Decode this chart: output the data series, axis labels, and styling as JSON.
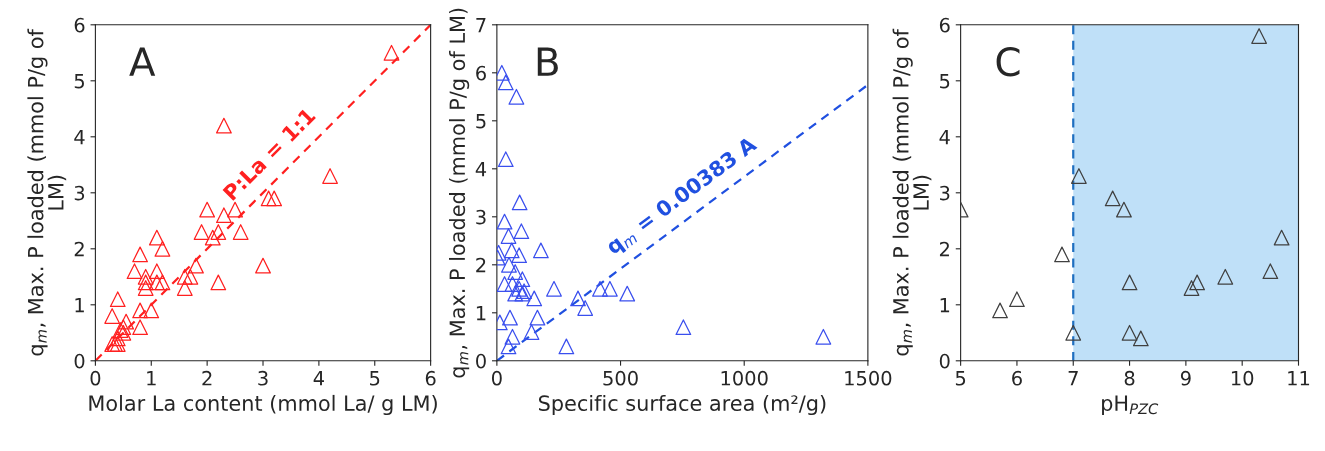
{
  "chart_data": [
    {
      "type": "scatter",
      "xlabel": "Molar La content (mmol La/ g LM)",
      "ylabel": "q$_{m}$, Max. P loaded (mmol P/g of\nLM)",
      "xlim": [
        0,
        6
      ],
      "ylim": [
        0,
        6
      ],
      "xticks": [
        0,
        1,
        2,
        3,
        4,
        5,
        6
      ],
      "yticks": [
        0,
        1,
        2,
        3,
        4,
        5,
        6
      ],
      "grid": false,
      "legend": false,
      "annotations": [
        "A",
        {
          "text": "P:La = 1:1",
          "x": 3.4,
          "y": 3.4
        }
      ],
      "series": [
        {
          "marker": "triangle",
          "color": "#ff2020",
          "x": [
            0.3,
            0.4,
            0.3,
            0.35,
            0.4,
            0.45,
            0.5,
            0.55,
            0.5,
            0.4,
            0.8,
            0.8,
            1.0,
            0.7,
            0.8,
            0.9,
            0.9,
            0.9,
            1.1,
            1.2,
            1.1,
            1.1,
            1.2,
            1.6,
            1.6,
            1.7,
            1.8,
            1.9,
            2.0,
            2.1,
            2.2,
            2.2,
            2.3,
            2.3,
            2.5,
            2.6,
            3.0,
            3.1,
            3.2,
            4.2,
            5.3
          ],
          "values": [
            0.8,
            1.1,
            0.3,
            0.3,
            0.4,
            0.55,
            0.6,
            0.7,
            0.5,
            0.3,
            0.6,
            0.9,
            0.9,
            1.6,
            1.9,
            1.5,
            1.3,
            1.4,
            2.2,
            2.0,
            1.6,
            1.4,
            1.4,
            1.5,
            1.3,
            1.5,
            1.7,
            2.3,
            2.7,
            2.2,
            2.3,
            1.4,
            2.6,
            4.2,
            2.7,
            2.3,
            1.7,
            2.9,
            2.9,
            3.3,
            5.5
          ]
        },
        {
          "type": "line",
          "marker": "none",
          "line_style": "dashed",
          "color": "#ff2020",
          "x": [
            0,
            6
          ],
          "values": [
            0,
            6
          ]
        }
      ]
    },
    {
      "type": "scatter",
      "xlabel": "Specific surface area (m²/g)",
      "ylabel": "q$_{m}$, Max. P loaded (mmol P/g of LM)",
      "xlim": [
        0,
        1500
      ],
      "ylim": [
        0,
        7
      ],
      "xticks": [
        0,
        500,
        1000,
        1500
      ],
      "yticks": [
        0,
        1,
        2,
        3,
        4,
        5,
        6,
        7
      ],
      "grid": false,
      "legend": false,
      "annotations": [
        "B",
        {
          "text": "q$_{m}$ = 0.00383 A",
          "x": 800,
          "y": 3.06
        }
      ],
      "series": [
        {
          "marker": "triangle",
          "color": "#3a4fee",
          "x": [
            20,
            36,
            79,
            36,
            92,
            31,
            99,
            47,
            7,
            3,
            60,
            90,
            178,
            49,
            74,
            31,
            63,
            103,
            90,
            110,
            74,
            103,
            151,
            231,
            328,
            357,
            417,
            457,
            527,
            12,
            53,
            164,
            140,
            63,
            47,
            281,
            754,
            1320
          ],
          "values": [
            6.0,
            5.8,
            5.5,
            4.2,
            3.3,
            2.9,
            2.7,
            2.6,
            2.25,
            2.15,
            2.3,
            2.2,
            2.3,
            2.0,
            1.85,
            1.6,
            1.6,
            1.7,
            1.5,
            1.45,
            1.4,
            1.4,
            1.3,
            1.5,
            1.3,
            1.1,
            1.5,
            1.5,
            1.4,
            0.8,
            0.9,
            0.9,
            0.6,
            0.5,
            0.3,
            0.3,
            0.7,
            0.5
          ]
        },
        {
          "type": "line",
          "marker": "none",
          "line_style": "dashed",
          "color": "#2050e0",
          "x": [
            0,
            1500
          ],
          "values": [
            0,
            5.75
          ]
        }
      ]
    },
    {
      "type": "scatter",
      "xlabel": "pH$_{PZC}$",
      "ylabel": "q$_{m}$, Max. P loaded (mmol P/g of\nLM)",
      "xlim": [
        5,
        11
      ],
      "ylim": [
        0,
        6
      ],
      "xticks": [
        5,
        6,
        7,
        8,
        9,
        10,
        11
      ],
      "yticks": [
        0,
        1,
        2,
        3,
        4,
        5,
        6
      ],
      "grid": false,
      "legend": false,
      "annotations": [
        "C"
      ],
      "bands": [
        {
          "axis": "x",
          "from": 7,
          "to": 11,
          "color": "#bfe0f8"
        }
      ],
      "ref_lines": [
        {
          "axis": "x",
          "value": 7,
          "color": "#1f6fc0",
          "line_style": "dashed"
        }
      ],
      "series": [
        {
          "marker": "triangle",
          "color": "#404040",
          "x": [
            5,
            5.7,
            6,
            6.8,
            7,
            7.1,
            7.7,
            7.9,
            8,
            8,
            8.2,
            9.1,
            9.2,
            9.7,
            10.3,
            10.5,
            10.7
          ],
          "values": [
            2.7,
            0.9,
            1.1,
            1.9,
            0.5,
            3.3,
            2.9,
            2.7,
            1.4,
            0.5,
            0.4,
            1.3,
            1.4,
            1.5,
            5.8,
            1.6,
            2.2
          ]
        }
      ]
    }
  ]
}
